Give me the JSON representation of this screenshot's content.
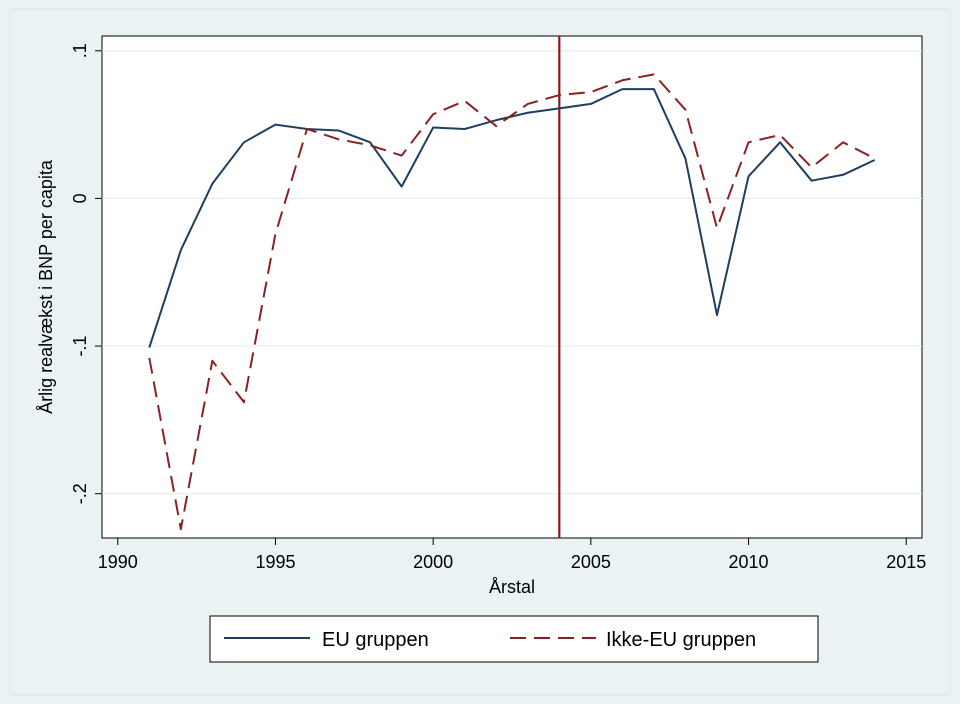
{
  "chart_data": {
    "type": "line",
    "xlabel": "Årstal",
    "ylabel": "Årlig realvækst i BNP per capita",
    "xlim": [
      1989.5,
      2015.5
    ],
    "ylim": [
      -0.23,
      0.11
    ],
    "xticks": [
      1990,
      1995,
      2000,
      2005,
      2010,
      2015
    ],
    "xtick_labels": [
      "1990",
      "1995",
      "2000",
      "2005",
      "2010",
      "2015"
    ],
    "yticks": [
      -0.2,
      -0.1,
      0,
      0.1
    ],
    "ytick_labels": [
      "-.2",
      "-.1",
      "0",
      ".1"
    ],
    "grid": true,
    "vertical_line": {
      "x": 2004,
      "color": "#8b1a1a"
    },
    "series": [
      {
        "name": "EU gruppen",
        "color": "#1f3f5f",
        "dash": "solid",
        "x": [
          1991,
          1992,
          1993,
          1994,
          1995,
          1996,
          1997,
          1998,
          1999,
          2000,
          2001,
          2002,
          2003,
          2004,
          2005,
          2006,
          2007,
          2008,
          2009,
          2010,
          2011,
          2012,
          2013,
          2014
        ],
        "values": [
          -0.101,
          -0.035,
          0.01,
          0.038,
          0.05,
          0.047,
          0.046,
          0.038,
          0.008,
          0.048,
          0.047,
          0.053,
          0.058,
          0.061,
          0.064,
          0.074,
          0.074,
          0.027,
          -0.079,
          0.015,
          0.038,
          0.012,
          0.016,
          0.026
        ]
      },
      {
        "name": "Ikke-EU gruppen",
        "color": "#8b2222",
        "dash": "dashed",
        "x": [
          1991,
          1992,
          1993,
          1994,
          1995,
          1996,
          1997,
          1998,
          1999,
          2000,
          2001,
          2002,
          2003,
          2004,
          2005,
          2006,
          2007,
          2008,
          2009,
          2010,
          2011,
          2012,
          2013,
          2014
        ],
        "values": [
          -0.108,
          -0.224,
          -0.11,
          -0.138,
          -0.024,
          0.047,
          0.04,
          0.036,
          0.029,
          0.057,
          0.066,
          0.049,
          0.064,
          0.07,
          0.072,
          0.08,
          0.084,
          0.06,
          -0.02,
          0.038,
          0.043,
          0.021,
          0.038,
          0.027
        ]
      }
    ],
    "legend": [
      "EU gruppen",
      "Ikke-EU gruppen"
    ],
    "legend_position": "bottom"
  },
  "colors": {
    "background": "#eaf2f3",
    "plot_background": "#ffffff",
    "grid": "#e6eded"
  }
}
